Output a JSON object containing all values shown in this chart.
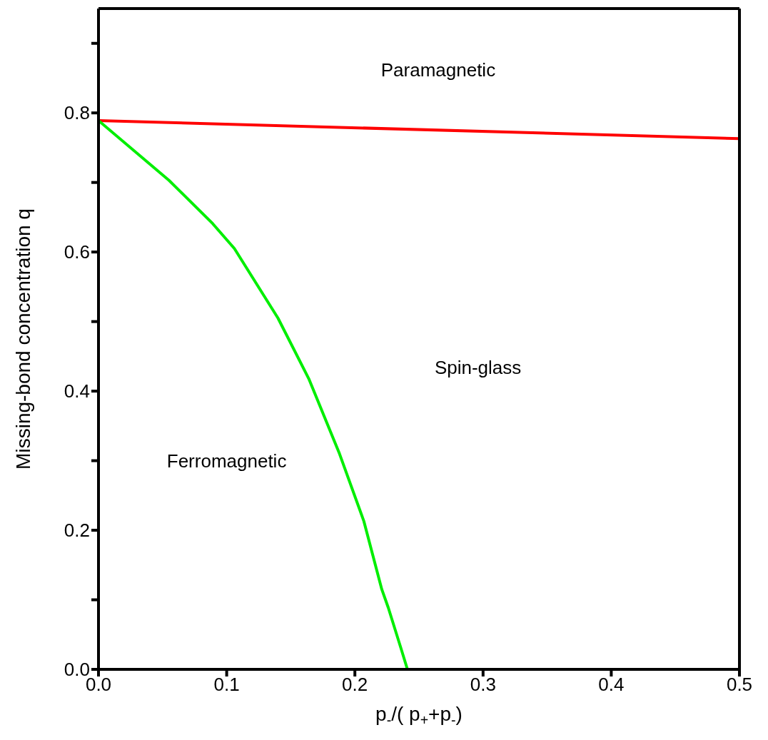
{
  "chart_data": {
    "type": "line",
    "xlabel": "p$_{-}$/( p$_{+}$+p$_{-}$)",
    "ylabel": "Missing-bond concentration q",
    "xlim": [
      0,
      0.5
    ],
    "xticks": [
      {
        "value": 0,
        "label": "0.0"
      },
      0.1,
      0.2,
      0.3,
      0.4,
      0.5
    ],
    "ylim": [
      0,
      0.95
    ],
    "yticks": [
      {
        "value": 0,
        "label": "0.0"
      },
      {
        "value": 0.1,
        "label": null
      },
      0.2,
      {
        "value": 0.3,
        "label": null
      },
      0.4,
      {
        "value": 0.5,
        "label": null
      },
      0.6,
      {
        "value": 0.7,
        "label": null
      },
      0.8,
      {
        "value": 0.9,
        "label": null
      }
    ],
    "grid": false,
    "marker": "none",
    "line_style": "solid",
    "series": [
      {
        "color": "#ff0000",
        "x": [
          0,
          0.5
        ],
        "values": [
          0.789,
          0.763
        ]
      },
      {
        "color": "#00ee00",
        "x": [
          0,
          0.055,
          0.089,
          0.106,
          0.14,
          0.164,
          0.188,
          0.207,
          0.221,
          0.226,
          0.236,
          0.241
        ],
        "values": [
          0.789,
          0.703,
          0.641,
          0.605,
          0.505,
          0.418,
          0.31,
          0.213,
          0.115,
          0.089,
          0.03,
          0
        ]
      }
    ],
    "annotations": [
      "Paramagnetic",
      "Spin-glass",
      "Ferromagnetic"
    ]
  }
}
